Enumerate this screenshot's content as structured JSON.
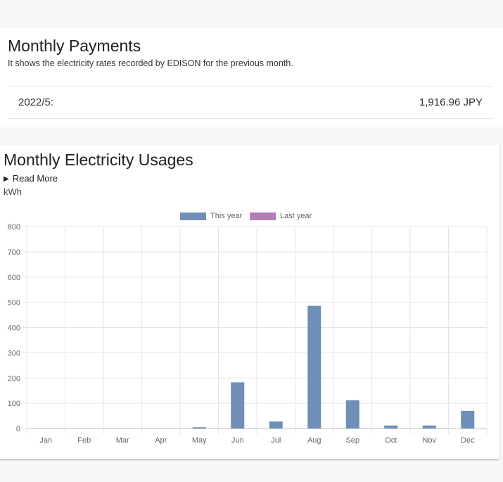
{
  "payments": {
    "title": "Monthly Payments",
    "subtitle": "It shows the electricity rates recorded by EDISON for the previous month.",
    "month": "2022/5:",
    "amount": "1,916.96 JPY"
  },
  "usage": {
    "title": "Monthly Electricity Usages",
    "read_more": "Read More",
    "read_more_icon": "triangle-right-icon",
    "unit": "kWh"
  },
  "colors": {
    "this_year": "#6f8fb8",
    "last_year": "#b57db8"
  },
  "chart_data": {
    "type": "bar",
    "categories": [
      "Jan",
      "Feb",
      "Mar",
      "Apr",
      "May",
      "Jun",
      "Jul",
      "Aug",
      "Sep",
      "Oct",
      "Nov",
      "Dec"
    ],
    "series": [
      {
        "name": "This year",
        "values": [
          0,
          0,
          0,
          0,
          5,
          183,
          28,
          486,
          112,
          12,
          12,
          70
        ]
      },
      {
        "name": "Last year",
        "values": [
          0,
          0,
          0,
          0,
          0,
          0,
          0,
          0,
          0,
          0,
          0,
          0
        ]
      }
    ],
    "yticks": [
      "0",
      "100",
      "200",
      "300",
      "400",
      "500",
      "600",
      "700",
      "800"
    ],
    "ylim": [
      0,
      800
    ],
    "ylabel": "kWh",
    "grid": true,
    "legend": "top-center"
  }
}
